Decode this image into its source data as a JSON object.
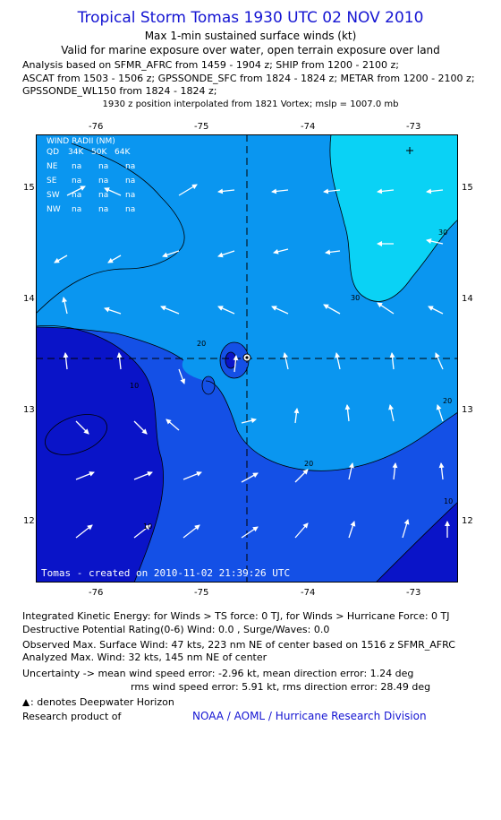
{
  "title": "Tropical Storm Tomas 1930 UTC 02 NOV 2010",
  "subtitle1": "Max 1-min sustained surface winds (kt)",
  "subtitle2": "Valid for marine exposure over water, open terrain exposure over land",
  "analysis_lines": [
    "Analysis based on SFMR_AFRC from 1459 - 1904 z; SHIP from 1200 - 2100 z;",
    "ASCAT from 1503 - 1506 z; GPSSONDE_SFC from 1824 - 1824 z; METAR from 1200 - 2100 z;",
    "GPSSONDE_WL150 from 1824 - 1824 z;"
  ],
  "position_note": "1930 z position interpolated from 1821 Vortex; mslp = 1007.0 mb",
  "map": {
    "lon_ticks": [
      "-76",
      "-75",
      "-74",
      "-73"
    ],
    "lat_ticks": [
      "15",
      "14",
      "13",
      "12"
    ],
    "contour_labels": [
      "10",
      "20",
      "30",
      "30",
      "20",
      "20",
      "10",
      "10"
    ],
    "wind_radii": {
      "header": "WIND RADII (NM)",
      "columns": [
        "QD",
        "34K",
        "50K",
        "64K"
      ],
      "rows": [
        [
          "NE",
          "na",
          "na",
          "na"
        ],
        [
          "SE",
          "na",
          "na",
          "na"
        ],
        [
          "SW",
          "na",
          "na",
          "na"
        ],
        [
          "NW",
          "na",
          "na",
          "na"
        ]
      ]
    },
    "credit": "Tomas - created on 2010-11-02 21:39:26 UTC",
    "colors": {
      "band_0_10": "#0a14c8",
      "band_10_20": "#1450e6",
      "band_20_30": "#0a96f0",
      "band_30_40": "#0ad2f5",
      "frame": "#000000"
    }
  },
  "footer": {
    "ike": "Integrated Kinetic Energy:  for Winds > TS force: 0 TJ,  for Winds > Hurricane Force: 0 TJ",
    "dpr": "Destructive Potential Rating(0-6)   Wind: 0.0 , Surge/Waves: 0.0",
    "obs_max": "Observed Max. Surface Wind: 47 kts, 223 nm NE of center based on 1516 z SFMR_AFRC",
    "analyzed_max": "Analyzed Max. Wind: 32 kts, 145 nm NE of center",
    "uncertainty1": "Uncertainty -> mean wind speed error:  -2.96 kt,   mean direction error: 1.24 deg",
    "uncertainty2": "rms wind speed error: 5.91 kt,   rms direction error: 28.49 deg",
    "deepwater": ": denotes Deepwater Horizon",
    "research": "Research product of",
    "noaa": "NOAA / AOML / Hurricane Research Division"
  }
}
